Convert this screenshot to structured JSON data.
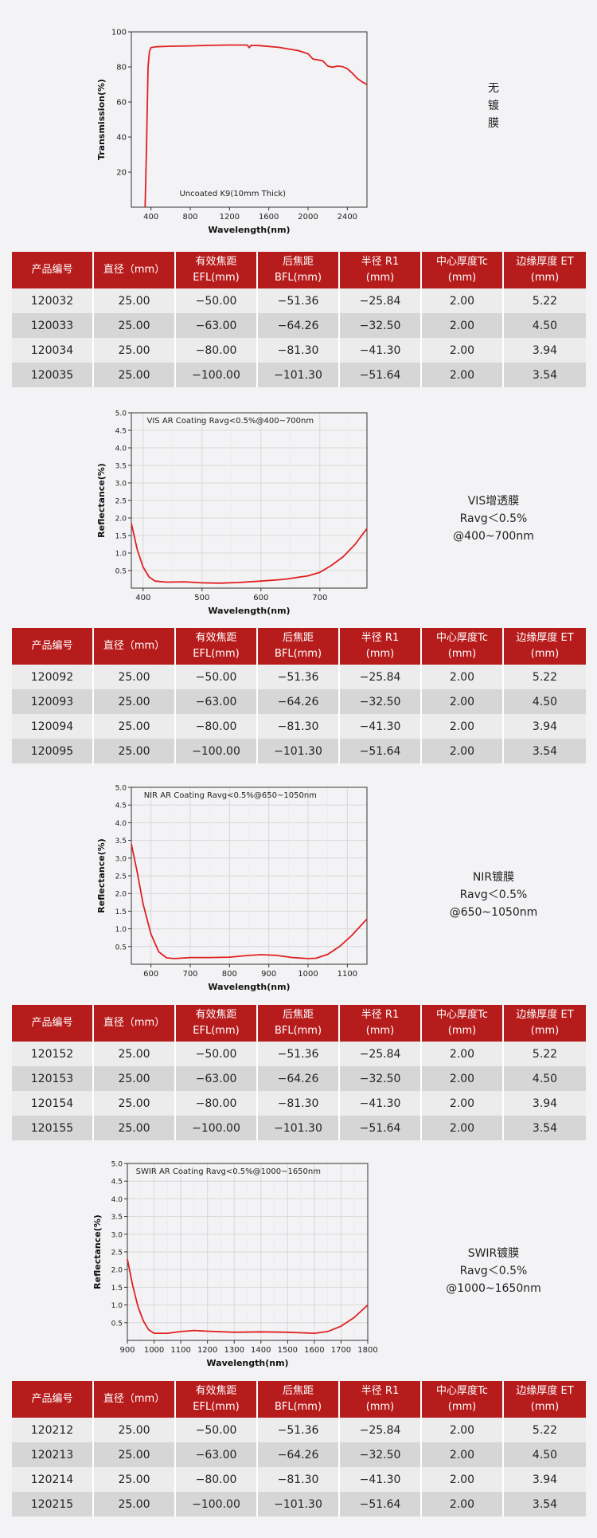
{
  "table_headers": [
    "产品编号",
    "直径（mm）",
    "有效焦距\nEFL(mm)",
    "后焦距\nBFL(mm)",
    "半径 R1\n(mm)",
    "中心厚度Tc\n(mm)",
    "边缘厚度 ET\n(mm)"
  ],
  "sections": [
    {
      "label": [
        "无",
        "镀",
        "膜"
      ],
      "chart_data": {
        "type": "line",
        "title": "Uncoated K9(10mm Thick)",
        "xlabel": "Wavelength(nm)",
        "ylabel": "Transmission(%)",
        "xlim": [
          200,
          2600
        ],
        "ylim": [
          0,
          100
        ],
        "xticks": [
          400,
          800,
          1200,
          1600,
          2000,
          2400
        ],
        "yticks": [
          20,
          40,
          60,
          80,
          100
        ],
        "grid": false,
        "series": [
          {
            "color": "#e02020",
            "x": [
              340,
              355,
              370,
              385,
              400,
              450,
              600,
              800,
              1000,
              1200,
              1380,
              1400,
              1420,
              1500,
              1700,
              1900,
              2000,
              2050,
              2150,
              2200,
              2250,
              2300,
              2350,
              2400,
              2450,
              2500,
              2550,
              2600
            ],
            "y": [
              0,
              35,
              80,
              89,
              91,
              91.5,
              91.8,
              92,
              92.3,
              92.5,
              92.5,
              91,
              92.3,
              92.2,
              91.2,
              89.3,
              87.5,
              84.5,
              83.5,
              80.5,
              79.8,
              80.5,
              80.2,
              79,
              76.5,
              73.5,
              71.5,
              70
            ]
          }
        ]
      },
      "rows": [
        [
          "120032",
          "25.00",
          "−50.00",
          "−51.36",
          "−25.84",
          "2.00",
          "5.22"
        ],
        [
          "120033",
          "25.00",
          "−63.00",
          "−64.26",
          "−32.50",
          "2.00",
          "4.50"
        ],
        [
          "120034",
          "25.00",
          "−80.00",
          "−81.30",
          "−41.30",
          "2.00",
          "3.94"
        ],
        [
          "120035",
          "25.00",
          "−100.00",
          "−101.30",
          "−51.64",
          "2.00",
          "3.54"
        ]
      ]
    },
    {
      "label": [
        "VIS增透膜",
        "Ravg＜0.5%",
        "@400~700nm"
      ],
      "chart_data": {
        "type": "line",
        "title": "VIS AR Coating Ravg<0.5%@400~700nm",
        "xlabel": "Wavelength(nm)",
        "ylabel": "Reflectance(%)",
        "xlim": [
          380,
          780
        ],
        "ylim": [
          0,
          5
        ],
        "xticks": [
          400,
          500,
          600,
          700
        ],
        "yticks": [
          0.5,
          1.0,
          1.5,
          2.0,
          2.5,
          3.0,
          3.5,
          4.0,
          4.5,
          5.0
        ],
        "grid": true,
        "series": [
          {
            "color": "#e02020",
            "x": [
              380,
              390,
              400,
              410,
              420,
              440,
              470,
              500,
              530,
              560,
              600,
              640,
              680,
              700,
              720,
              740,
              760,
              780
            ],
            "y": [
              1.85,
              1.1,
              0.6,
              0.32,
              0.2,
              0.17,
              0.18,
              0.15,
              0.14,
              0.16,
              0.2,
              0.25,
              0.35,
              0.45,
              0.65,
              0.9,
              1.25,
              1.7
            ]
          }
        ]
      },
      "rows": [
        [
          "120092",
          "25.00",
          "−50.00",
          "−51.36",
          "−25.84",
          "2.00",
          "5.22"
        ],
        [
          "120093",
          "25.00",
          "−63.00",
          "−64.26",
          "−32.50",
          "2.00",
          "4.50"
        ],
        [
          "120094",
          "25.00",
          "−80.00",
          "−81.30",
          "−41.30",
          "2.00",
          "3.94"
        ],
        [
          "120095",
          "25.00",
          "−100.00",
          "−101.30",
          "−51.64",
          "2.00",
          "3.54"
        ]
      ]
    },
    {
      "label": [
        "NIR镀膜",
        "Ravg＜0.5%",
        "@650~1050nm"
      ],
      "chart_data": {
        "type": "line",
        "title": "NIR AR Coating Ravg<0.5%@650~1050nm",
        "xlabel": "Wavelength(nm)",
        "ylabel": "Reflectance(%)",
        "xlim": [
          550,
          1150
        ],
        "ylim": [
          0,
          5
        ],
        "xticks": [
          600,
          700,
          800,
          900,
          1000,
          1100
        ],
        "yticks": [
          0.5,
          1.0,
          1.5,
          2.0,
          2.5,
          3.0,
          3.5,
          4.0,
          4.5,
          5.0
        ],
        "grid": true,
        "series": [
          {
            "color": "#e02020",
            "x": [
              550,
              565,
              580,
              600,
              620,
              640,
              660,
              700,
              750,
              800,
              850,
              880,
              920,
              960,
              1000,
              1020,
              1050,
              1080,
              1110,
              1150
            ],
            "y": [
              3.4,
              2.6,
              1.7,
              0.85,
              0.35,
              0.18,
              0.16,
              0.19,
              0.19,
              0.2,
              0.25,
              0.27,
              0.25,
              0.19,
              0.16,
              0.17,
              0.28,
              0.5,
              0.8,
              1.28
            ]
          }
        ]
      },
      "rows": [
        [
          "120152",
          "25.00",
          "−50.00",
          "−51.36",
          "−25.84",
          "2.00",
          "5.22"
        ],
        [
          "120153",
          "25.00",
          "−63.00",
          "−64.26",
          "−32.50",
          "2.00",
          "4.50"
        ],
        [
          "120154",
          "25.00",
          "−80.00",
          "−81.30",
          "−41.30",
          "2.00",
          "3.94"
        ],
        [
          "120155",
          "25.00",
          "−100.00",
          "−101.30",
          "−51.64",
          "2.00",
          "3.54"
        ]
      ]
    },
    {
      "label": [
        "SWIR镀膜",
        "Ravg＜0.5%",
        "@1000~1650nm"
      ],
      "chart_data": {
        "type": "line",
        "title": "SWIR AR Coating Ravg<0.5%@1000~1650nm",
        "xlabel": "Wavelength(nm)",
        "ylabel": "Reflectance(%)",
        "xlim": [
          900,
          1800
        ],
        "ylim": [
          0,
          5
        ],
        "xticks": [
          900,
          1000,
          1100,
          1200,
          1300,
          1400,
          1500,
          1600,
          1700,
          1800
        ],
        "yticks": [
          0.5,
          1.0,
          1.5,
          2.0,
          2.5,
          3.0,
          3.5,
          4.0,
          4.5,
          5.0
        ],
        "grid": true,
        "series": [
          {
            "color": "#e02020",
            "x": [
              900,
              920,
              940,
              960,
              980,
              1000,
              1050,
              1100,
              1150,
              1200,
              1300,
              1400,
              1500,
              1600,
              1650,
              1700,
              1750,
              1800
            ],
            "y": [
              2.3,
              1.55,
              0.95,
              0.55,
              0.3,
              0.2,
              0.2,
              0.25,
              0.28,
              0.26,
              0.23,
              0.24,
              0.23,
              0.2,
              0.25,
              0.4,
              0.65,
              1.0
            ]
          }
        ]
      },
      "rows": [
        [
          "120212",
          "25.00",
          "−50.00",
          "−51.36",
          "−25.84",
          "2.00",
          "5.22"
        ],
        [
          "120213",
          "25.00",
          "−63.00",
          "−64.26",
          "−32.50",
          "2.00",
          "4.50"
        ],
        [
          "120214",
          "25.00",
          "−80.00",
          "−81.30",
          "−41.30",
          "2.00",
          "3.94"
        ],
        [
          "120215",
          "25.00",
          "−100.00",
          "−101.30",
          "−51.64",
          "2.00",
          "3.54"
        ]
      ]
    }
  ]
}
